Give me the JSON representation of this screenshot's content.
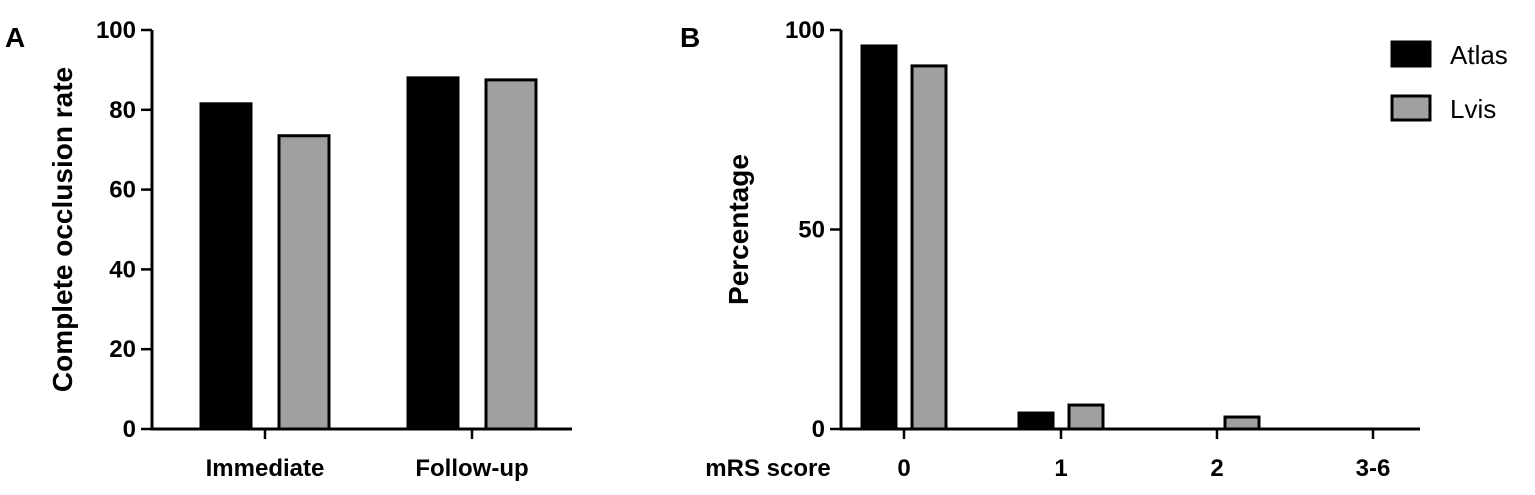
{
  "colors": {
    "atlas": "#000000",
    "lvis": "#a0a0a0",
    "outline": "#000000"
  },
  "chart_data": [
    {
      "panel": "A",
      "type": "bar",
      "categories": [
        "Immediate",
        "Follow-up"
      ],
      "series": [
        {
          "name": "Atlas",
          "values": [
            81.5,
            88
          ]
        },
        {
          "name": "Lvis",
          "values": [
            73.5,
            87.5
          ]
        }
      ],
      "xlabel": "",
      "ylabel": "Complete occlusion rate",
      "ylim": [
        0,
        100
      ],
      "yticks": [
        0,
        20,
        40,
        60,
        80,
        100
      ],
      "grid": false
    },
    {
      "panel": "B",
      "type": "bar",
      "categories": [
        "0",
        "1",
        "2",
        "3-6"
      ],
      "series": [
        {
          "name": "Atlas",
          "values": [
            96,
            4,
            0,
            0
          ]
        },
        {
          "name": "Lvis",
          "values": [
            91,
            6,
            3,
            0
          ]
        }
      ],
      "xlabel": "mRS score",
      "ylabel": "Percentage",
      "ylim": [
        0,
        100
      ],
      "yticks": [
        0,
        50,
        100
      ],
      "grid": false,
      "legend": {
        "placement": "top-right",
        "entries": [
          "Atlas",
          "Lvis"
        ]
      }
    }
  ]
}
